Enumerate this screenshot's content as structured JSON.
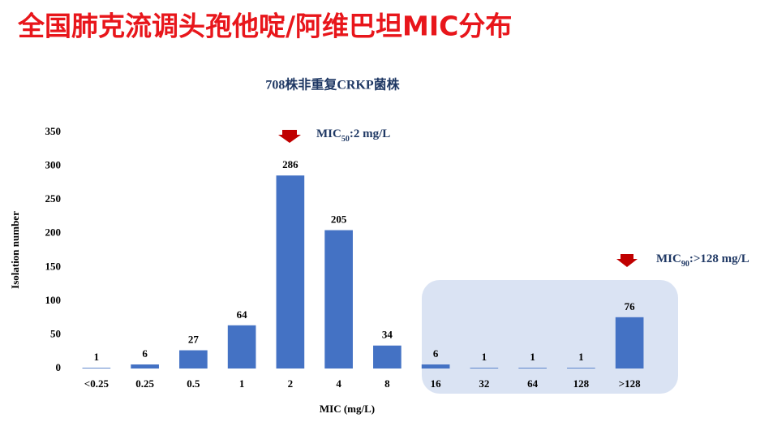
{
  "chart_data": {
    "type": "bar",
    "page_title": "全国肺克流调头孢他啶/阿维巴坦MIC分布",
    "title": "708株非重复CRKP菌株",
    "x_label": "MIC (mg/L)",
    "y_label": "Isolation number",
    "categories": [
      "<0.25",
      "0.25",
      "0.5",
      "1",
      "2",
      "4",
      "8",
      "16",
      "32",
      "64",
      "128",
      ">128"
    ],
    "values": [
      1,
      6,
      27,
      64,
      286,
      205,
      34,
      6,
      1,
      1,
      1,
      76
    ],
    "color": "#4472c4",
    "ylim": [
      0,
      350
    ],
    "yticks": [
      0,
      50,
      100,
      150,
      200,
      250,
      300,
      350
    ],
    "grid": false,
    "annotations": [
      {
        "text": "MIC",
        "sub": "50",
        "rest": ":2 mg/L"
      },
      {
        "text": "MIC",
        "sub": "90",
        "rest": ":>128 mg/L"
      }
    ]
  }
}
